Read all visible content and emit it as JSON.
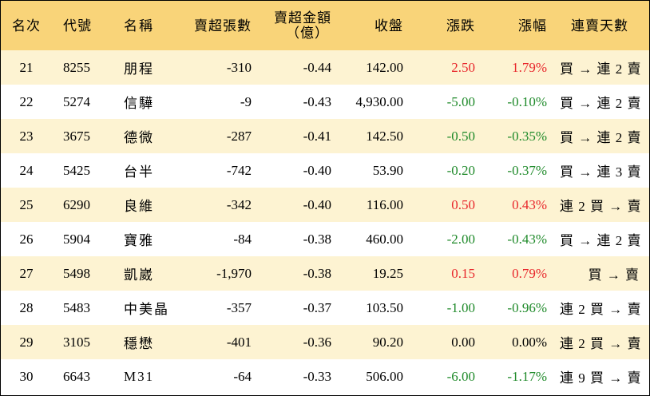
{
  "colors": {
    "header_bg": "#f9d479",
    "stripe_bg": "#fdf3d2",
    "up": "#e8262b",
    "down": "#1f8a2a"
  },
  "headers": {
    "rank": "名次",
    "code": "代號",
    "name": "名稱",
    "net_sell_lots": "賣超張數",
    "net_sell_amount_line1": "賣超金額",
    "net_sell_amount_line2": "（億）",
    "close": "收盤",
    "change": "漲跌",
    "change_pct": "漲幅",
    "streak": "連賣天數"
  },
  "rows": [
    {
      "rank": "21",
      "code": "8255",
      "name": "朋程",
      "lots": "-310",
      "amount": "-0.44",
      "close": "142.00",
      "change": "2.50",
      "pct": "1.79%",
      "trend": "up",
      "streak": "買 → 連 2 賣"
    },
    {
      "rank": "22",
      "code": "5274",
      "name": "信驊",
      "lots": "-9",
      "amount": "-0.43",
      "close": "4,930.00",
      "change": "-5.00",
      "pct": "-0.10%",
      "trend": "down",
      "streak": "買 → 連 2 賣"
    },
    {
      "rank": "23",
      "code": "3675",
      "name": "德微",
      "lots": "-287",
      "amount": "-0.41",
      "close": "142.50",
      "change": "-0.50",
      "pct": "-0.35%",
      "trend": "down",
      "streak": "買 → 連 2 賣"
    },
    {
      "rank": "24",
      "code": "5425",
      "name": "台半",
      "lots": "-742",
      "amount": "-0.40",
      "close": "53.90",
      "change": "-0.20",
      "pct": "-0.37%",
      "trend": "down",
      "streak": "買 → 連 3 賣"
    },
    {
      "rank": "25",
      "code": "6290",
      "name": "良維",
      "lots": "-342",
      "amount": "-0.40",
      "close": "116.00",
      "change": "0.50",
      "pct": "0.43%",
      "trend": "up",
      "streak": "連 2 買 → 賣"
    },
    {
      "rank": "26",
      "code": "5904",
      "name": "寶雅",
      "lots": "-84",
      "amount": "-0.38",
      "close": "460.00",
      "change": "-2.00",
      "pct": "-0.43%",
      "trend": "down",
      "streak": "買 → 連 2 賣"
    },
    {
      "rank": "27",
      "code": "5498",
      "name": "凱崴",
      "lots": "-1,970",
      "amount": "-0.38",
      "close": "19.25",
      "change": "0.15",
      "pct": "0.79%",
      "trend": "up",
      "streak": "買 → 賣"
    },
    {
      "rank": "28",
      "code": "5483",
      "name": "中美晶",
      "lots": "-357",
      "amount": "-0.37",
      "close": "103.50",
      "change": "-1.00",
      "pct": "-0.96%",
      "trend": "down",
      "streak": "連 2 買 → 賣"
    },
    {
      "rank": "29",
      "code": "3105",
      "name": "穩懋",
      "lots": "-401",
      "amount": "-0.36",
      "close": "90.20",
      "change": "0.00",
      "pct": "0.00%",
      "trend": "flat",
      "streak": "連 2 買 → 賣"
    },
    {
      "rank": "30",
      "code": "6643",
      "name": "M31",
      "lots": "-64",
      "amount": "-0.33",
      "close": "506.00",
      "change": "-6.00",
      "pct": "-1.17%",
      "trend": "down",
      "streak": "連 9 買 → 賣"
    }
  ]
}
